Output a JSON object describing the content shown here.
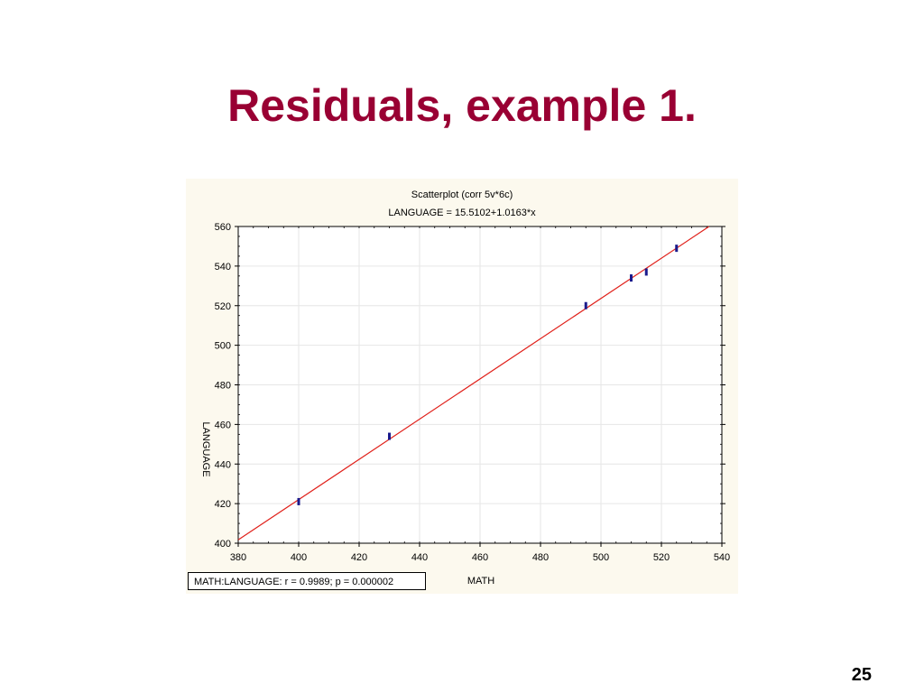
{
  "slide": {
    "title": "Residuals, example 1.",
    "page_number": "25"
  },
  "chart_data": {
    "type": "scatter",
    "title": "Scatterplot (corr 5v*6c)",
    "subtitle": "LANGUAGE = 15.5102+1.0163*x",
    "xlabel": "MATH",
    "ylabel": "LANGUAGE",
    "xlim": [
      380,
      540
    ],
    "ylim": [
      400,
      560
    ],
    "x_ticks": [
      "380",
      "400",
      "420",
      "440",
      "460",
      "480",
      "500",
      "520",
      "540"
    ],
    "y_ticks": [
      "560",
      "540",
      "520",
      "500",
      "480",
      "460",
      "440",
      "420",
      "400"
    ],
    "grid": true,
    "fit_line": {
      "intercept": 15.5102,
      "slope": 1.0163,
      "color": "#e0201a"
    },
    "marker_color": "#1a1a8c",
    "points": [
      {
        "x": 400,
        "y": 421
      },
      {
        "x": 430,
        "y": 454
      },
      {
        "x": 495,
        "y": 520
      },
      {
        "x": 510,
        "y": 534
      },
      {
        "x": 515,
        "y": 537
      },
      {
        "x": 525,
        "y": 549
      }
    ],
    "stats_label": "MATH:LANGUAGE:   r = 0.9989; p = 0.000002"
  },
  "colors": {
    "title": "#990033",
    "panel_background": "#fcf9ee"
  }
}
